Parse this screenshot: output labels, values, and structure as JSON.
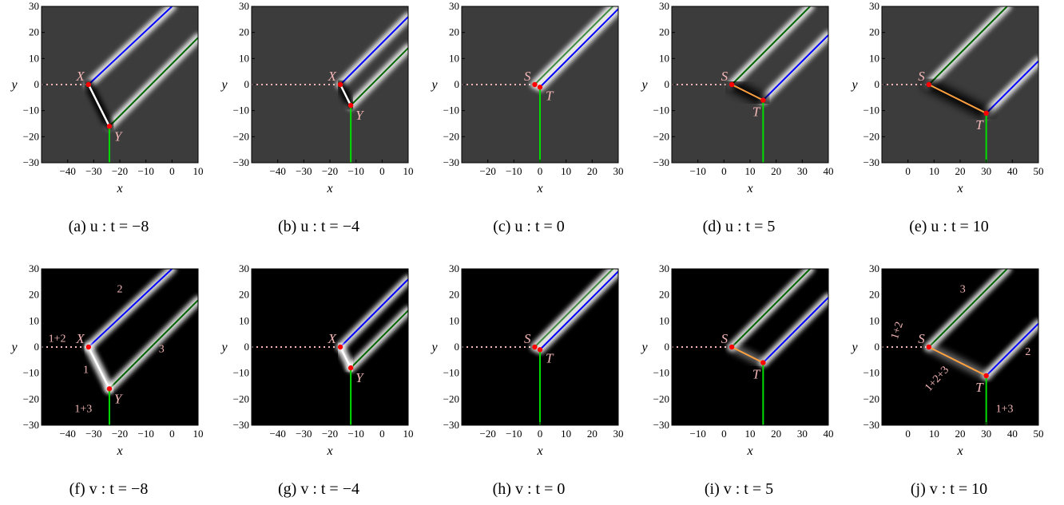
{
  "chart_data": [
    {
      "type": "heatmap",
      "panel_id": "a",
      "field": "u",
      "t": -8,
      "caption": "(a) u : t = −8",
      "xlabel": "x",
      "ylabel": "y",
      "xlim": [
        -50,
        10
      ],
      "ylim": [
        -30,
        30
      ],
      "xticks": [
        "−40",
        "−30",
        "−20",
        "−10",
        "0",
        "10"
      ],
      "yticks": [
        "30",
        "20",
        "10",
        "0",
        "−10",
        "−20",
        "−30"
      ],
      "background": "#3c3c3c",
      "points": [
        {
          "label": "X",
          "x": -32,
          "y": 0
        },
        {
          "label": "Y",
          "x": -24,
          "y": -16
        }
      ],
      "lines": [
        {
          "color": "#0000ff",
          "from": [
            -32,
            0
          ],
          "to": [
            0,
            30
          ]
        },
        {
          "color": "#006400",
          "from": [
            -24,
            -16
          ],
          "to": [
            10,
            18
          ]
        },
        {
          "color": "#ffffff",
          "from": [
            -32,
            0
          ],
          "to": [
            -24,
            -16
          ]
        },
        {
          "color": "#00dd00",
          "from": [
            -24,
            -16
          ],
          "to": [
            -24,
            -30
          ]
        }
      ],
      "annotations": []
    },
    {
      "type": "heatmap",
      "panel_id": "b",
      "field": "u",
      "t": -4,
      "caption": "(b) u : t = −4",
      "xlabel": "x",
      "ylabel": "y",
      "xlim": [
        -50,
        10
      ],
      "ylim": [
        -30,
        30
      ],
      "xticks": [
        "−40",
        "−30",
        "−20",
        "−10",
        "0",
        "10"
      ],
      "yticks": [
        "30",
        "20",
        "10",
        "0",
        "−10",
        "−20",
        "−30"
      ],
      "background": "#3c3c3c",
      "points": [
        {
          "label": "X",
          "x": -16,
          "y": 0
        },
        {
          "label": "Y",
          "x": -12,
          "y": -8
        }
      ],
      "lines": [
        {
          "color": "#0000ff",
          "from": [
            -16,
            0
          ],
          "to": [
            10,
            26
          ]
        },
        {
          "color": "#006400",
          "from": [
            -12,
            -8
          ],
          "to": [
            10,
            14
          ]
        },
        {
          "color": "#ffffff",
          "from": [
            -16,
            0
          ],
          "to": [
            -12,
            -8
          ]
        },
        {
          "color": "#00dd00",
          "from": [
            -12,
            -8
          ],
          "to": [
            -12,
            -30
          ]
        }
      ],
      "annotations": []
    },
    {
      "type": "heatmap",
      "panel_id": "c",
      "field": "u",
      "t": 0,
      "caption": "(c) u : t = 0",
      "xlabel": "x",
      "ylabel": "y",
      "xlim": [
        -30,
        30
      ],
      "ylim": [
        -30,
        30
      ],
      "xticks": [
        "−20",
        "−10",
        "0",
        "10",
        "20",
        "30"
      ],
      "yticks": [
        "30",
        "20",
        "10",
        "0",
        "−10",
        "−20",
        "−30"
      ],
      "background": "#3c3c3c",
      "points": [
        {
          "label": "S",
          "x": -2,
          "y": 0
        },
        {
          "label": "T",
          "x": 0,
          "y": -1
        }
      ],
      "lines": [
        {
          "color": "#006400",
          "from": [
            -2,
            0
          ],
          "to": [
            28,
            30
          ]
        },
        {
          "color": "#0000ff",
          "from": [
            0,
            -1
          ],
          "to": [
            30,
            29
          ]
        },
        {
          "color": "#00dd00",
          "from": [
            0,
            -1
          ],
          "to": [
            0,
            -30
          ]
        }
      ],
      "annotations": []
    },
    {
      "type": "heatmap",
      "panel_id": "d",
      "field": "u",
      "t": 5,
      "caption": "(d) u : t = 5",
      "xlabel": "x",
      "ylabel": "y",
      "xlim": [
        -20,
        40
      ],
      "ylim": [
        -30,
        30
      ],
      "xticks": [
        "−10",
        "0",
        "10",
        "20",
        "30",
        "40"
      ],
      "yticks": [
        "30",
        "20",
        "10",
        "0",
        "−10",
        "−20",
        "−30"
      ],
      "background": "#3c3c3c",
      "points": [
        {
          "label": "S",
          "x": 3,
          "y": 0
        },
        {
          "label": "T",
          "x": 15,
          "y": -6
        }
      ],
      "lines": [
        {
          "color": "#006400",
          "from": [
            3,
            0
          ],
          "to": [
            33,
            30
          ]
        },
        {
          "color": "#0000ff",
          "from": [
            15,
            -6
          ],
          "to": [
            40,
            19
          ]
        },
        {
          "color": "#ffa040",
          "from": [
            3,
            0
          ],
          "to": [
            15,
            -6
          ]
        },
        {
          "color": "#00dd00",
          "from": [
            15,
            -6
          ],
          "to": [
            15,
            -30
          ]
        }
      ],
      "annotations": []
    },
    {
      "type": "heatmap",
      "panel_id": "e",
      "field": "u",
      "t": 10,
      "caption": "(e) u : t = 10",
      "xlabel": "x",
      "ylabel": "y",
      "xlim": [
        -10,
        50
      ],
      "ylim": [
        -30,
        30
      ],
      "xticks": [
        "0",
        "10",
        "20",
        "30",
        "40",
        "50"
      ],
      "yticks": [
        "30",
        "20",
        "10",
        "0",
        "−10",
        "−20",
        "−30"
      ],
      "background": "#3c3c3c",
      "points": [
        {
          "label": "S",
          "x": 8,
          "y": 0
        },
        {
          "label": "T",
          "x": 30,
          "y": -11
        }
      ],
      "lines": [
        {
          "color": "#006400",
          "from": [
            8,
            0
          ],
          "to": [
            38,
            30
          ]
        },
        {
          "color": "#0000ff",
          "from": [
            30,
            -11
          ],
          "to": [
            50,
            9
          ]
        },
        {
          "color": "#ffa040",
          "from": [
            8,
            0
          ],
          "to": [
            30,
            -11
          ]
        },
        {
          "color": "#00dd00",
          "from": [
            30,
            -11
          ],
          "to": [
            30,
            -30
          ]
        }
      ],
      "annotations": []
    },
    {
      "type": "heatmap",
      "panel_id": "f",
      "field": "v",
      "t": -8,
      "caption": "(f) v : t = −8",
      "xlabel": "x",
      "ylabel": "y",
      "xlim": [
        -50,
        10
      ],
      "ylim": [
        -30,
        30
      ],
      "xticks": [
        "−40",
        "−30",
        "−20",
        "−10",
        "0",
        "10"
      ],
      "yticks": [
        "30",
        "20",
        "10",
        "0",
        "−10",
        "−20",
        "−30"
      ],
      "background": "#000000",
      "points": [
        {
          "label": "X",
          "x": -32,
          "y": 0
        },
        {
          "label": "Y",
          "x": -24,
          "y": -16
        }
      ],
      "lines": [
        {
          "color": "#0000ff",
          "from": [
            -32,
            0
          ],
          "to": [
            0,
            30
          ]
        },
        {
          "color": "#006400",
          "from": [
            -24,
            -16
          ],
          "to": [
            10,
            18
          ]
        },
        {
          "color": "#ffffff",
          "from": [
            -32,
            0
          ],
          "to": [
            -24,
            -16
          ]
        },
        {
          "color": "#00dd00",
          "from": [
            -24,
            -16
          ],
          "to": [
            -24,
            -30
          ]
        }
      ],
      "annotations": [
        {
          "text": "2",
          "x": -20,
          "y": 21,
          "rot": 0
        },
        {
          "text": "3",
          "x": -4,
          "y": -2,
          "rot": 0
        },
        {
          "text": "1+2",
          "x": -44,
          "y": 2,
          "rot": 0
        },
        {
          "text": "1",
          "x": -33,
          "y": -10,
          "rot": 0
        },
        {
          "text": "1+3",
          "x": -34,
          "y": -25,
          "rot": 0
        }
      ]
    },
    {
      "type": "heatmap",
      "panel_id": "g",
      "field": "v",
      "t": -4,
      "caption": "(g) v : t = −4",
      "xlabel": "x",
      "ylabel": "y",
      "xlim": [
        -50,
        10
      ],
      "ylim": [
        -30,
        30
      ],
      "xticks": [
        "−40",
        "−30",
        "−20",
        "−10",
        "0",
        "10"
      ],
      "yticks": [
        "30",
        "20",
        "10",
        "0",
        "−10",
        "−20",
        "−30"
      ],
      "background": "#000000",
      "points": [
        {
          "label": "X",
          "x": -16,
          "y": 0
        },
        {
          "label": "Y",
          "x": -12,
          "y": -8
        }
      ],
      "lines": [
        {
          "color": "#0000ff",
          "from": [
            -16,
            0
          ],
          "to": [
            10,
            26
          ]
        },
        {
          "color": "#006400",
          "from": [
            -12,
            -8
          ],
          "to": [
            10,
            14
          ]
        },
        {
          "color": "#ffffff",
          "from": [
            -16,
            0
          ],
          "to": [
            -12,
            -8
          ]
        },
        {
          "color": "#00dd00",
          "from": [
            -12,
            -8
          ],
          "to": [
            -12,
            -30
          ]
        }
      ],
      "annotations": []
    },
    {
      "type": "heatmap",
      "panel_id": "h",
      "field": "v",
      "t": 0,
      "caption": "(h) v : t = 0",
      "xlabel": "x",
      "ylabel": "y",
      "xlim": [
        -30,
        30
      ],
      "ylim": [
        -30,
        30
      ],
      "xticks": [
        "−20",
        "−10",
        "0",
        "10",
        "20",
        "30"
      ],
      "yticks": [
        "30",
        "20",
        "10",
        "0",
        "−10",
        "−20",
        "−30"
      ],
      "background": "#000000",
      "points": [
        {
          "label": "S",
          "x": -2,
          "y": 0
        },
        {
          "label": "T",
          "x": 0,
          "y": -1
        }
      ],
      "lines": [
        {
          "color": "#006400",
          "from": [
            -2,
            0
          ],
          "to": [
            28,
            30
          ]
        },
        {
          "color": "#0000ff",
          "from": [
            0,
            -1
          ],
          "to": [
            30,
            29
          ]
        },
        {
          "color": "#00dd00",
          "from": [
            0,
            -1
          ],
          "to": [
            0,
            -30
          ]
        }
      ],
      "annotations": []
    },
    {
      "type": "heatmap",
      "panel_id": "i",
      "field": "v",
      "t": 5,
      "caption": "(i) v : t = 5",
      "xlabel": "x",
      "ylabel": "y",
      "xlim": [
        -20,
        40
      ],
      "ylim": [
        -30,
        30
      ],
      "xticks": [
        "−10",
        "0",
        "10",
        "20",
        "30",
        "40"
      ],
      "yticks": [
        "30",
        "20",
        "10",
        "0",
        "−10",
        "−20",
        "−30"
      ],
      "background": "#000000",
      "points": [
        {
          "label": "S",
          "x": 3,
          "y": 0
        },
        {
          "label": "T",
          "x": 15,
          "y": -6
        }
      ],
      "lines": [
        {
          "color": "#006400",
          "from": [
            3,
            0
          ],
          "to": [
            33,
            30
          ]
        },
        {
          "color": "#0000ff",
          "from": [
            15,
            -6
          ],
          "to": [
            40,
            19
          ]
        },
        {
          "color": "#ffa040",
          "from": [
            3,
            0
          ],
          "to": [
            15,
            -6
          ]
        },
        {
          "color": "#00dd00",
          "from": [
            15,
            -6
          ],
          "to": [
            15,
            -30
          ]
        }
      ],
      "annotations": []
    },
    {
      "type": "heatmap",
      "panel_id": "j",
      "field": "v",
      "t": 10,
      "caption": "(j) v : t = 10",
      "xlabel": "x",
      "ylabel": "y",
      "xlim": [
        -10,
        50
      ],
      "ylim": [
        -30,
        30
      ],
      "xticks": [
        "0",
        "10",
        "20",
        "30",
        "40",
        "50"
      ],
      "yticks": [
        "30",
        "20",
        "10",
        "0",
        "−10",
        "−20",
        "−30"
      ],
      "background": "#000000",
      "points": [
        {
          "label": "S",
          "x": 8,
          "y": 0
        },
        {
          "label": "T",
          "x": 30,
          "y": -11
        }
      ],
      "lines": [
        {
          "color": "#006400",
          "from": [
            8,
            0
          ],
          "to": [
            38,
            30
          ]
        },
        {
          "color": "#0000ff",
          "from": [
            30,
            -11
          ],
          "to": [
            50,
            9
          ]
        },
        {
          "color": "#ffa040",
          "from": [
            8,
            0
          ],
          "to": [
            30,
            -11
          ]
        },
        {
          "color": "#00dd00",
          "from": [
            30,
            -11
          ],
          "to": [
            30,
            -30
          ]
        }
      ],
      "annotations": [
        {
          "text": "3",
          "x": 21,
          "y": 21,
          "rot": 0
        },
        {
          "text": "1+2",
          "x": -3,
          "y": 6,
          "rot": -72
        },
        {
          "text": "2",
          "x": 46,
          "y": -3,
          "rot": 0
        },
        {
          "text": "1+2+3",
          "x": 12,
          "y": -13,
          "rot": -48
        },
        {
          "text": "1+3",
          "x": 37,
          "y": -25,
          "rot": 0
        }
      ]
    }
  ]
}
